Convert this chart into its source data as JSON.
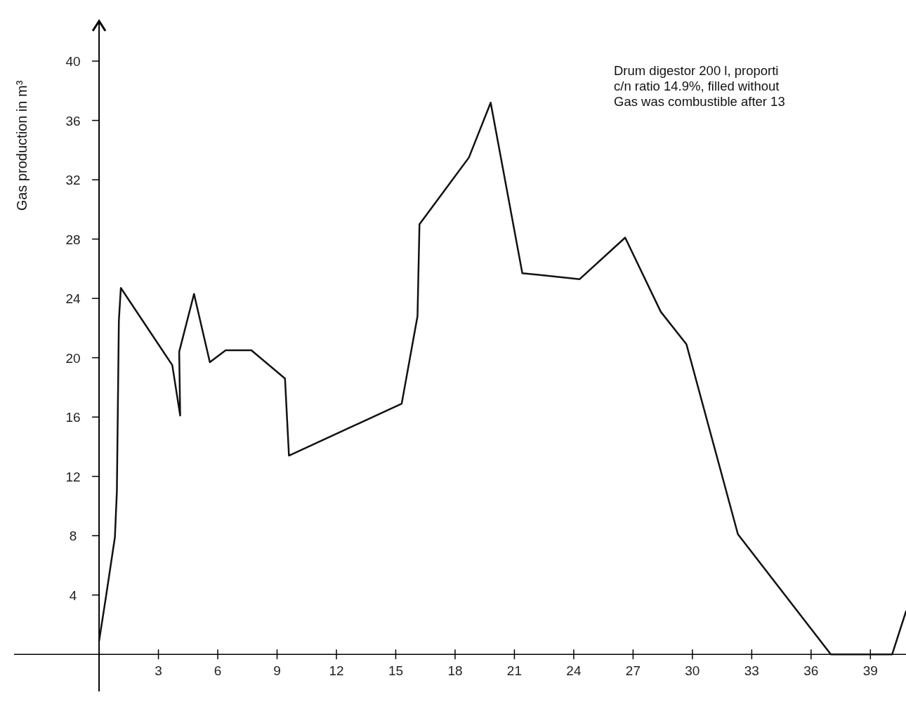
{
  "chart_data": {
    "type": "line",
    "ylabel": "Gas production in m³",
    "annotations": [
      "Drum digestor 200 l, proporti",
      "c/n ratio 14.9%, filled without",
      "Gas was combustible after 13"
    ],
    "x": [
      0,
      0.35,
      0.8,
      0.9,
      1.0,
      1.1,
      3.7,
      4.1,
      4.05,
      4.8,
      5.6,
      6.4,
      7.7,
      9.4,
      9.6,
      15.3,
      16.1,
      16.2,
      18.7,
      19.8,
      21.4,
      24.3,
      26.6,
      28.4,
      29.7,
      32.3,
      37.0,
      40.1,
      40.8
    ],
    "series": [
      {
        "color": "#111111",
        "values": [
          0.9,
          3.9,
          7.9,
          11,
          22.5,
          24.7,
          19.5,
          16.1,
          20.4,
          24.3,
          19.7,
          20.5,
          20.5,
          18.6,
          13.4,
          16.9,
          22.8,
          29,
          33.5,
          37.2,
          25.7,
          25.3,
          28.1,
          23.1,
          20.9,
          8.1,
          0,
          0,
          2.9
        ]
      }
    ],
    "xlim": [
      -4.3,
      40.8
    ],
    "ylim": [
      -2.5,
      42.7
    ],
    "xticks": [
      3,
      6,
      9,
      12,
      15,
      18,
      21,
      24,
      27,
      30,
      33,
      36,
      39
    ],
    "yticks": [
      4,
      8,
      12,
      16,
      20,
      24,
      28,
      32,
      36,
      40
    ],
    "grid": false,
    "marker": "none",
    "line_style": "solid"
  }
}
